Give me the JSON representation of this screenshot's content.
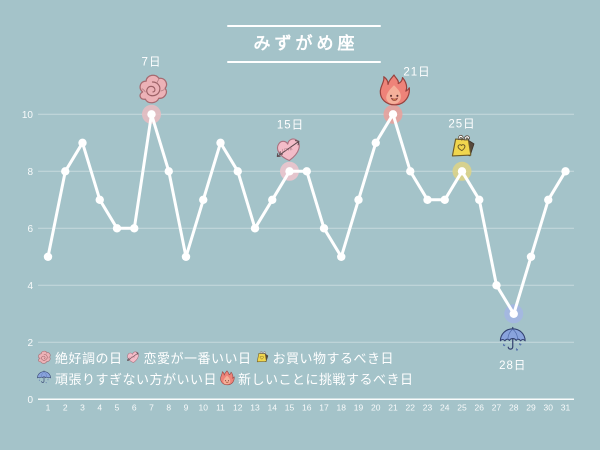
{
  "title": "みずがめ座",
  "colors": {
    "background": "#a4c3c9",
    "line": "#ffffff",
    "grid": "rgba(255,255,255,0.38)",
    "axis": "rgba(255,255,255,0.95)",
    "text": "#ffffff"
  },
  "chart_data": {
    "type": "line",
    "title": "みずがめ座",
    "xlabel": "",
    "ylabel": "",
    "x": [
      1,
      2,
      3,
      4,
      5,
      6,
      7,
      8,
      9,
      10,
      11,
      12,
      13,
      14,
      15,
      16,
      17,
      18,
      19,
      20,
      21,
      22,
      23,
      24,
      25,
      26,
      27,
      28,
      29,
      30,
      31
    ],
    "values": [
      5,
      8,
      9,
      7,
      6,
      6,
      10,
      8,
      5,
      7,
      9,
      8,
      6,
      7,
      8,
      8,
      6,
      5,
      7,
      9,
      10,
      8,
      7,
      7,
      8,
      7,
      4,
      3,
      5,
      7,
      8
    ],
    "ylim": [
      0,
      10
    ],
    "yticks": [
      0,
      2,
      4,
      6,
      8,
      10
    ],
    "grid": true,
    "legend_position": "bottom-left",
    "special_days": [
      {
        "day": 7,
        "label": "7日",
        "icon": "flower",
        "halo": "#e7bdc1",
        "icon_size": 36,
        "icon_gap": 26,
        "icon_dx": 1,
        "label_dx": 0,
        "label_dy": 0,
        "position": "above"
      },
      {
        "day": 15,
        "label": "15日",
        "icon": "heart",
        "halo": "#ecc5cd",
        "icon_size": 32,
        "icon_gap": 22,
        "icon_dx": -1,
        "label_dx": 1,
        "label_dy": 0,
        "position": "above"
      },
      {
        "day": 21,
        "label": "21日",
        "icon": "fire",
        "halo": "#e8a29c",
        "icon_size": 34,
        "icon_gap": 24,
        "icon_dx": 1,
        "label_dx": 24,
        "label_dy": 7,
        "position": "above"
      },
      {
        "day": 25,
        "label": "25日",
        "icon": "bag",
        "halo": "#dbd388",
        "icon_size": 32,
        "icon_gap": 25,
        "icon_dx": 0,
        "label_dx": 0,
        "label_dy": 2,
        "position": "above"
      },
      {
        "day": 28,
        "label": "28日",
        "icon": "umbrella",
        "halo": "#a4b7e2",
        "icon_size": 30,
        "icon_gap": 27,
        "icon_dx": -1,
        "label_dx": -1,
        "label_dy": 0,
        "position": "below"
      }
    ]
  },
  "legend": {
    "rows": [
      [
        {
          "icon": "flower",
          "label": "絶好調の日"
        },
        {
          "icon": "heart",
          "label": "恋愛が一番いい日"
        },
        {
          "icon": "bag",
          "label": "お買い物するべき日"
        }
      ],
      [
        {
          "icon": "umbrella",
          "label": "頑張りすぎない方がいい日"
        },
        {
          "icon": "fire",
          "label": "新しいことに挑戦するべき日"
        }
      ]
    ]
  }
}
